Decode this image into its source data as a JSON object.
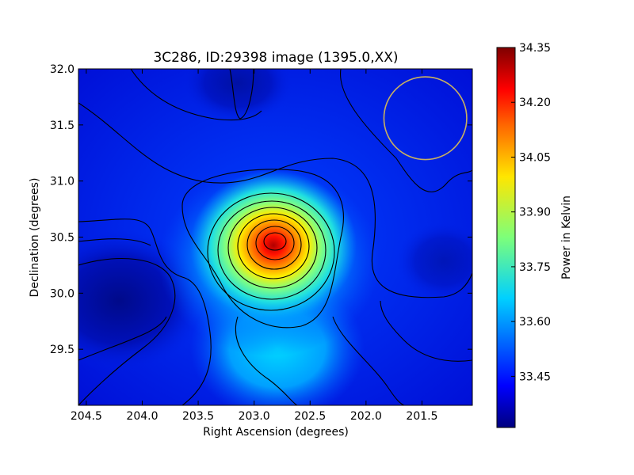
{
  "chart_data": {
    "type": "heatmap",
    "title": "3C286, ID:29398 image (1395.0,XX)",
    "xlabel": "Right Ascension (degrees)",
    "ylabel": "Declination (degrees)",
    "colorbar_label": "Power in Kelvin",
    "xlim": [
      204.57,
      201.05
    ],
    "ylim": [
      29.0,
      32.0
    ],
    "x_ticks": [
      204.5,
      204.0,
      203.5,
      203.0,
      202.5,
      202.0,
      201.5
    ],
    "x_tick_labels": [
      "204.5",
      "204.0",
      "203.5",
      "203.0",
      "202.5",
      "202.0",
      "201.5"
    ],
    "y_ticks": [
      29.5,
      30.0,
      30.5,
      31.0,
      31.5,
      32.0
    ],
    "y_tick_labels": [
      "29.5",
      "30.0",
      "30.5",
      "31.0",
      "31.5",
      "32.0"
    ],
    "colorbar_range": [
      33.31,
      34.35
    ],
    "colorbar_ticks": [
      33.45,
      33.6,
      33.75,
      33.9,
      34.05,
      34.2,
      34.35
    ],
    "colorbar_tick_labels": [
      "33.45",
      "33.60",
      "33.75",
      "33.90",
      "34.05",
      "34.20",
      "34.35"
    ],
    "colormap": "jet",
    "contour_color": "#000000",
    "beam_circle_color": "#c8b060",
    "peak": {
      "x": 202.78,
      "y": 30.45,
      "value": 34.35
    },
    "minimum": {
      "x": 204.3,
      "y": 29.95,
      "value": 33.31
    },
    "beam": {
      "x": 201.47,
      "y": 31.56,
      "radius_deg": 0.37
    }
  }
}
